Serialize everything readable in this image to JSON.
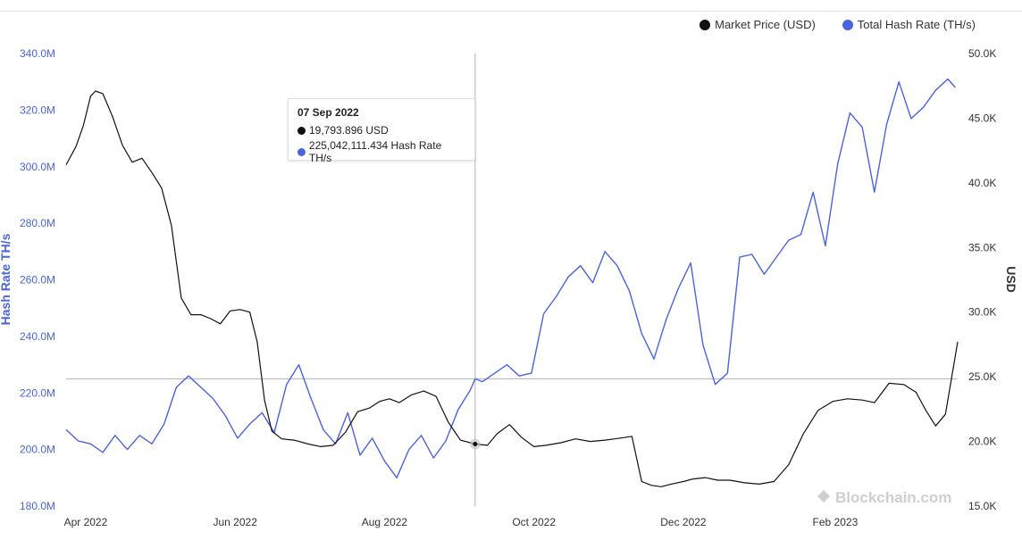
{
  "legend": {
    "price_label": "Market Price (USD)",
    "hash_label": "Total Hash Rate (TH/s)"
  },
  "colors": {
    "price": "#111111",
    "hash": "#4a63e0",
    "grid": "#e6e6e6"
  },
  "tooltip": {
    "date": "07 Sep 2022",
    "price": "19,793.896 USD",
    "hash": "225,042,111.434 Hash Rate TH/s"
  },
  "watermark": "Blockchain.com",
  "chart_data": {
    "type": "line",
    "title": "",
    "x_tick_labels": [
      "Apr 2022",
      "Jun 2022",
      "Aug 2022",
      "Oct 2022",
      "Dec 2022",
      "Feb 2023"
    ],
    "x_tick_dates": [
      "2022-04-01",
      "2022-06-01",
      "2022-08-01",
      "2022-10-01",
      "2022-12-01",
      "2023-02-01"
    ],
    "xlim": [
      "2022-03-24",
      "2023-03-23"
    ],
    "y_left": {
      "label": "Hash Rate TH/s",
      "lim": [
        180000000,
        340000000
      ],
      "ticks": [
        "180.0M",
        "200.0M",
        "220.0M",
        "240.0M",
        "260.0M",
        "280.0M",
        "300.0M",
        "320.0M",
        "340.0M"
      ]
    },
    "y_right": {
      "label": "USD",
      "lim": [
        15000,
        50000
      ],
      "ticks": [
        "15.0K",
        "20.0K",
        "25.0K",
        "30.0K",
        "35.0K",
        "40.0K",
        "45.0K",
        "50.0K"
      ]
    },
    "grid": false,
    "legend_position": "top-right",
    "crosshair_date": "2022-09-07",
    "series": [
      {
        "name": "Market Price (USD)",
        "axis": "right",
        "dates": [
          "2022-03-24",
          "2022-03-28",
          "2022-03-31",
          "2022-04-03",
          "2022-04-05",
          "2022-04-08",
          "2022-04-12",
          "2022-04-16",
          "2022-04-20",
          "2022-04-24",
          "2022-04-28",
          "2022-05-02",
          "2022-05-06",
          "2022-05-10",
          "2022-05-14",
          "2022-05-18",
          "2022-05-22",
          "2022-05-26",
          "2022-05-30",
          "2022-06-03",
          "2022-06-07",
          "2022-06-10",
          "2022-06-13",
          "2022-06-16",
          "2022-06-20",
          "2022-06-25",
          "2022-07-01",
          "2022-07-06",
          "2022-07-11",
          "2022-07-16",
          "2022-07-21",
          "2022-07-26",
          "2022-07-30",
          "2022-08-03",
          "2022-08-07",
          "2022-08-12",
          "2022-08-17",
          "2022-08-22",
          "2022-08-27",
          "2022-09-01",
          "2022-09-07",
          "2022-09-12",
          "2022-09-16",
          "2022-09-21",
          "2022-09-26",
          "2022-10-01",
          "2022-10-06",
          "2022-10-12",
          "2022-10-18",
          "2022-10-24",
          "2022-10-30",
          "2022-11-03",
          "2022-11-07",
          "2022-11-10",
          "2022-11-14",
          "2022-11-18",
          "2022-11-22",
          "2022-11-26",
          "2022-12-01",
          "2022-12-05",
          "2022-12-10",
          "2022-12-15",
          "2022-12-20",
          "2022-12-26",
          "2023-01-01",
          "2023-01-07",
          "2023-01-13",
          "2023-01-19",
          "2023-01-25",
          "2023-01-31",
          "2023-02-06",
          "2023-02-12",
          "2023-02-17",
          "2023-02-23",
          "2023-03-01",
          "2023-03-06",
          "2023-03-10",
          "2023-03-14",
          "2023-03-18",
          "2023-03-23"
        ],
        "values": [
          41400,
          42800,
          44400,
          46700,
          47100,
          46900,
          45100,
          42900,
          41600,
          41900,
          40800,
          39600,
          36700,
          31100,
          29800,
          29800,
          29500,
          29100,
          30100,
          30200,
          30000,
          27700,
          23200,
          20800,
          20200,
          20100,
          19800,
          19600,
          19700,
          20700,
          22300,
          22600,
          23100,
          23300,
          23000,
          23600,
          23900,
          23500,
          21500,
          20100,
          19800,
          19700,
          20600,
          21300,
          20300,
          19600,
          19700,
          19900,
          20200,
          20000,
          20100,
          20200,
          20300,
          20400,
          16900,
          16600,
          16500,
          16700,
          16900,
          17100,
          17200,
          17000,
          17000,
          16800,
          16700,
          16900,
          18200,
          20600,
          22400,
          23100,
          23300,
          23200,
          23000,
          24500,
          24400,
          23800,
          22400,
          21200,
          22100,
          27700
        ]
      },
      {
        "name": "Total Hash Rate (TH/s)",
        "axis": "left",
        "dates": [
          "2022-03-24",
          "2022-03-29",
          "2022-04-03",
          "2022-04-08",
          "2022-04-13",
          "2022-04-18",
          "2022-04-23",
          "2022-04-28",
          "2022-05-03",
          "2022-05-08",
          "2022-05-13",
          "2022-05-18",
          "2022-05-23",
          "2022-05-28",
          "2022-06-02",
          "2022-06-07",
          "2022-06-12",
          "2022-06-17",
          "2022-06-22",
          "2022-06-27",
          "2022-07-02",
          "2022-07-07",
          "2022-07-12",
          "2022-07-17",
          "2022-07-22",
          "2022-07-27",
          "2022-08-01",
          "2022-08-06",
          "2022-08-11",
          "2022-08-16",
          "2022-08-21",
          "2022-08-26",
          "2022-08-31",
          "2022-09-05",
          "2022-09-07",
          "2022-09-10",
          "2022-09-15",
          "2022-09-20",
          "2022-09-25",
          "2022-09-30",
          "2022-10-05",
          "2022-10-10",
          "2022-10-15",
          "2022-10-20",
          "2022-10-25",
          "2022-10-30",
          "2022-11-04",
          "2022-11-09",
          "2022-11-14",
          "2022-11-19",
          "2022-11-24",
          "2022-11-29",
          "2022-12-04",
          "2022-12-09",
          "2022-12-14",
          "2022-12-19",
          "2022-12-24",
          "2022-12-29",
          "2023-01-03",
          "2023-01-08",
          "2023-01-13",
          "2023-01-18",
          "2023-01-23",
          "2023-01-28",
          "2023-02-02",
          "2023-02-07",
          "2023-02-12",
          "2023-02-17",
          "2023-02-22",
          "2023-02-27",
          "2023-03-04",
          "2023-03-09",
          "2023-03-14",
          "2023-03-19",
          "2023-03-22"
        ],
        "values": [
          207000000,
          203000000,
          202000000,
          199000000,
          205000000,
          200000000,
          205000000,
          202000000,
          209000000,
          222000000,
          226000000,
          222000000,
          218000000,
          212000000,
          204000000,
          209000000,
          213000000,
          206000000,
          223000000,
          230000000,
          218000000,
          207000000,
          202000000,
          213000000,
          198000000,
          204000000,
          196000000,
          190000000,
          200000000,
          205000000,
          197000000,
          203000000,
          214000000,
          221000000,
          225000000,
          224000000,
          227000000,
          230000000,
          226000000,
          227000000,
          248000000,
          254000000,
          261000000,
          265000000,
          259000000,
          270000000,
          265000000,
          256000000,
          241000000,
          232000000,
          246000000,
          257000000,
          266000000,
          237000000,
          223000000,
          227000000,
          268000000,
          269000000,
          262000000,
          268000000,
          274000000,
          276000000,
          291000000,
          272000000,
          301000000,
          319000000,
          314000000,
          291000000,
          315000000,
          330000000,
          317000000,
          321000000,
          327000000,
          331000000,
          328000000
        ]
      }
    ]
  }
}
